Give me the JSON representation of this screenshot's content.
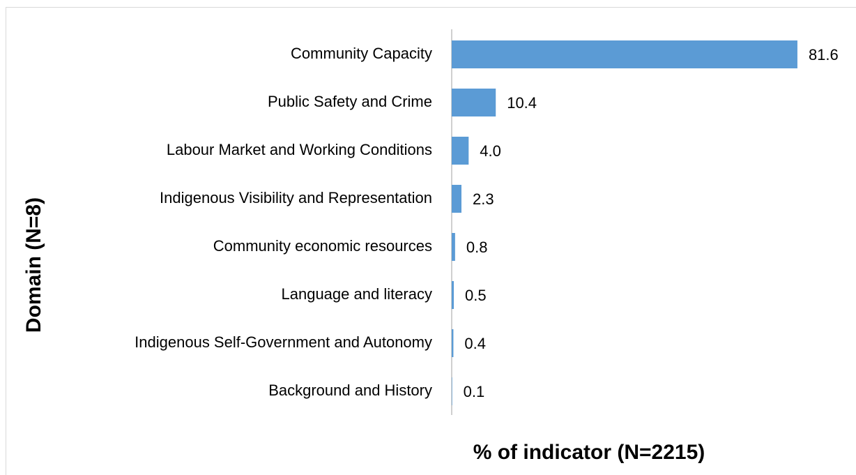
{
  "chart_data": {
    "type": "bar",
    "orientation": "horizontal",
    "xlabel": "% of indicator (N=2215)",
    "ylabel": "Domain (N=8)",
    "categories": [
      "Community Capacity",
      "Public Safety and Crime",
      "Labour Market and Working Conditions",
      "Indigenous Visibility and Representation",
      "Community economic resources",
      "Language and literacy",
      "Indigenous Self-Government and Autonomy",
      "Background and History"
    ],
    "values": [
      81.6,
      10.4,
      4.0,
      2.3,
      0.8,
      0.5,
      0.4,
      0.1
    ],
    "value_labels": [
      "81.6",
      "10.4",
      "4.0",
      "2.3",
      "0.8",
      "0.5",
      "0.4",
      "0.1"
    ],
    "color": "#5b9bd5",
    "xlim": [
      0,
      90
    ]
  }
}
